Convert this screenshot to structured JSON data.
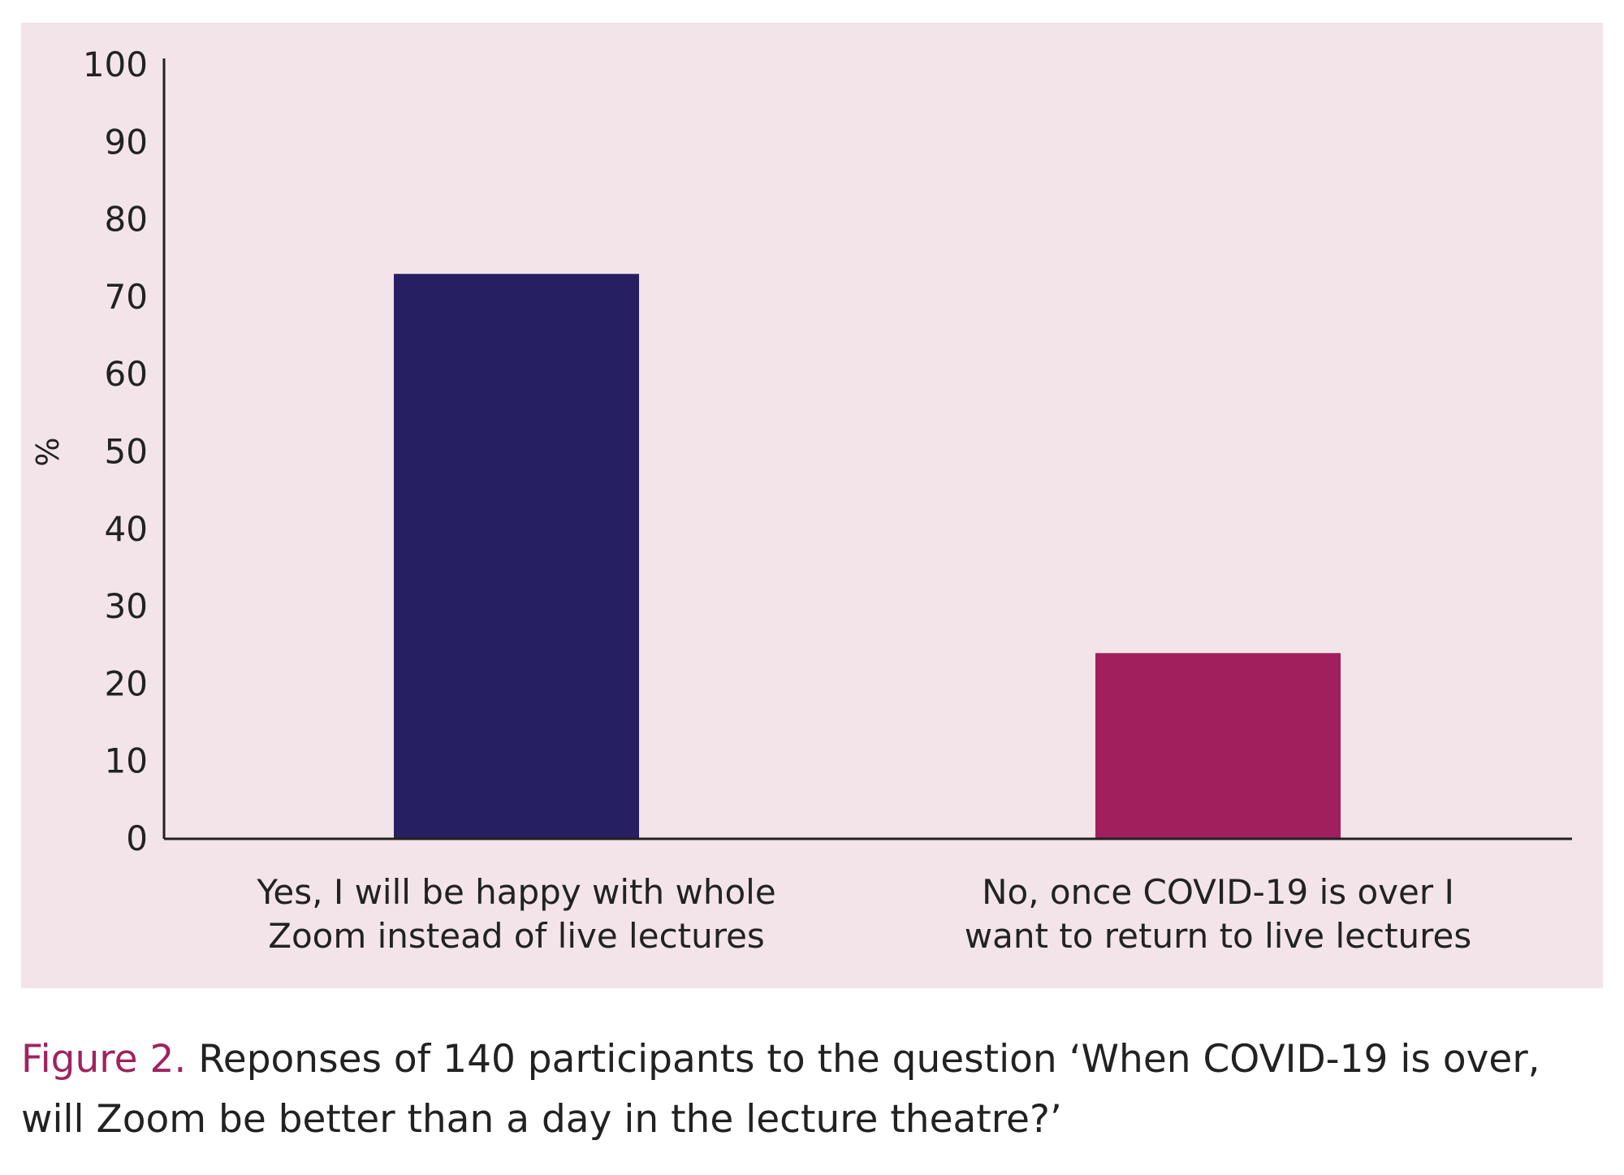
{
  "chart_data": {
    "type": "bar",
    "categories": [
      [
        "Yes, I will be happy with whole",
        "Zoom instead of live lectures"
      ],
      [
        "No, once COVID-19 is over I",
        "want to return to live lectures"
      ]
    ],
    "values": [
      73,
      24
    ],
    "bar_colors": [
      "#261f61",
      "#a01f5c"
    ],
    "ylabel": "%",
    "ylim": [
      0,
      100
    ],
    "yticks": [
      0,
      10,
      20,
      30,
      40,
      50,
      60,
      70,
      80,
      90,
      100
    ],
    "grid": false
  },
  "caption": {
    "label": "Figure 2.",
    "text": "Reponses of 140 participants to the question ‘When COVID-19 is over, will Zoom be better than a day in the lecture theatre?’"
  }
}
